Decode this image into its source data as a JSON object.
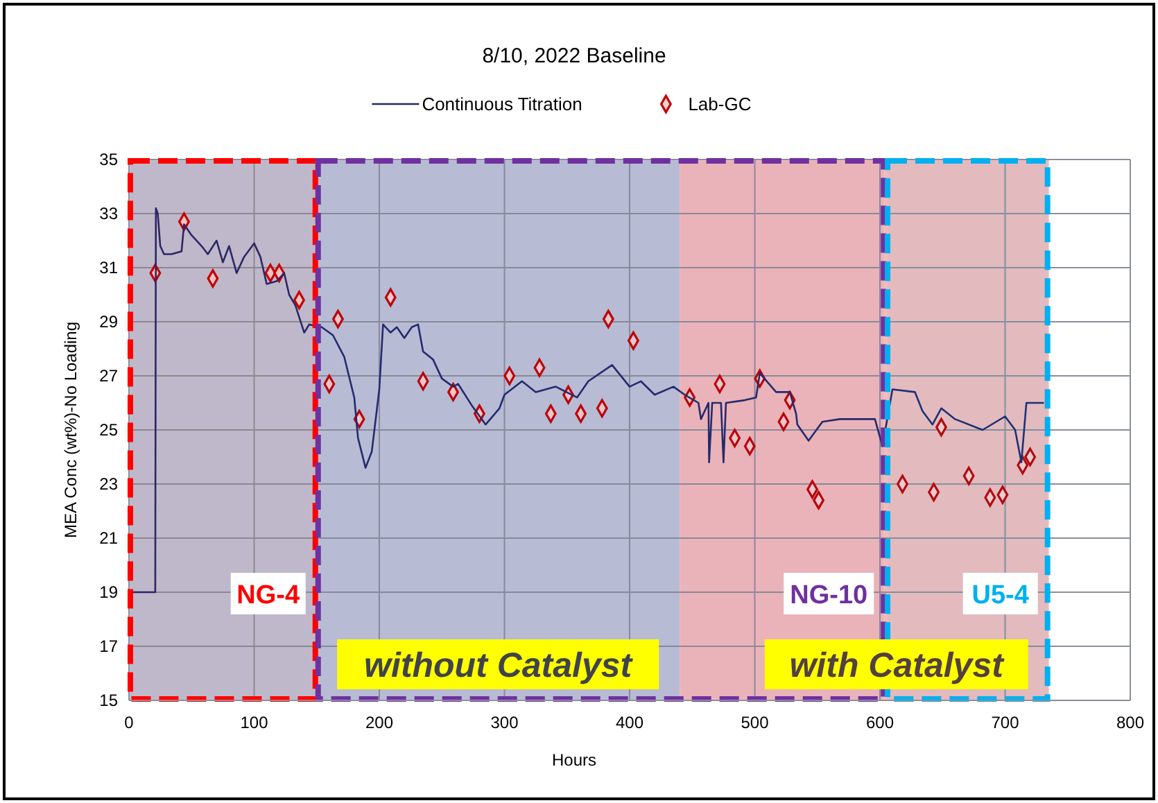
{
  "chart_data": {
    "type": "line",
    "title": "8/10, 2022 Baseline",
    "xlabel": "Hours",
    "ylabel": "MEA Conc (wt%)-No Loading",
    "xlim": [
      0,
      800
    ],
    "xticks": [
      0,
      100,
      200,
      300,
      400,
      500,
      600,
      700,
      800
    ],
    "ylim": [
      15,
      35
    ],
    "yticks": [
      15,
      17,
      19,
      21,
      23,
      25,
      27,
      29,
      31,
      33,
      35
    ],
    "grid": true,
    "legend": "top",
    "bands": [
      {
        "axis": "x",
        "from": 0,
        "to": 440,
        "label": "without Catalyst",
        "color": "#bcc4d8"
      },
      {
        "axis": "x",
        "from": 440,
        "to": 735,
        "label": "with Catalyst",
        "color": "#f2bcbc"
      },
      {
        "axis": "x",
        "from": 0,
        "to": 150,
        "label": "NG-4",
        "color": "#ff0000"
      },
      {
        "axis": "x",
        "from": 150,
        "to": 604,
        "label": "NG-10",
        "color": "#7030a0"
      },
      {
        "axis": "x",
        "from": 605,
        "to": 735,
        "label": "U5-4",
        "color": "#00b0f0"
      }
    ],
    "series": [
      {
        "name": "Continuous Titration",
        "color": "#1f2a6b",
        "marker": "none",
        "line_style": "solid",
        "x": [
          0,
          21,
          21.5,
          23,
          25,
          28,
          34,
          42,
          44,
          50,
          58,
          63,
          70,
          75,
          80,
          86,
          92,
          100,
          105,
          110,
          118,
          124,
          128,
          133,
          140,
          144,
          154,
          163,
          172,
          180,
          183,
          189,
          194,
          200,
          203,
          209,
          214,
          220,
          226,
          231,
          235,
          243,
          250,
          259,
          263,
          274,
          285,
          296,
          300,
          314,
          325,
          341,
          358,
          367,
          386,
          400,
          409,
          420,
          435,
          444,
          455,
          457,
          463,
          463.5,
          466,
          473,
          475,
          477,
          492,
          501,
          504,
          517,
          528,
          533,
          534,
          543,
          554,
          568,
          596,
          602,
          610,
          628,
          634,
          642,
          649,
          660,
          682,
          700,
          708,
          713,
          717,
          731
        ],
        "values": [
          19,
          19,
          33.2,
          33,
          31.8,
          31.5,
          31.5,
          31.6,
          32.6,
          32.2,
          31.8,
          31.5,
          32,
          31.2,
          31.8,
          30.8,
          31.4,
          31.9,
          31.4,
          30.4,
          30.5,
          30.8,
          30,
          29.6,
          28.6,
          28.9,
          28.8,
          28.5,
          27.7,
          26.2,
          24.7,
          23.6,
          24.2,
          26.5,
          28.9,
          28.6,
          28.8,
          28.4,
          28.8,
          28.9,
          27.9,
          27.6,
          26.9,
          26.6,
          26.7,
          25.9,
          25.2,
          25.8,
          26.3,
          26.8,
          26.4,
          26.6,
          26.2,
          26.8,
          27.4,
          26.6,
          26.8,
          26.3,
          26.6,
          26.3,
          26,
          25.4,
          26,
          23.8,
          26,
          26,
          23.8,
          26,
          26.1,
          26.2,
          27.1,
          26.4,
          26.4,
          25.6,
          25.2,
          24.6,
          25.3,
          25.4,
          25.4,
          24.4,
          26.5,
          26.4,
          25.7,
          25.2,
          25.8,
          25.4,
          25,
          25.5,
          25,
          23.8,
          26,
          26
        ]
      },
      {
        "name": "Lab-GC",
        "type": "scatter",
        "color": "#c00000",
        "marker": "diamond",
        "x": [
          21,
          44,
          67,
          113,
          120,
          136,
          160,
          167,
          184,
          209,
          235,
          259,
          280,
          304,
          328,
          337,
          351,
          361,
          378,
          383,
          403,
          448,
          472,
          484,
          496,
          504,
          523,
          528,
          546,
          551,
          618,
          643,
          649,
          671,
          688,
          698,
          714,
          720
        ],
        "values": [
          30.8,
          32.7,
          30.6,
          30.8,
          30.8,
          29.8,
          26.7,
          29.1,
          25.4,
          29.9,
          26.8,
          26.4,
          25.6,
          27,
          27.3,
          25.6,
          26.3,
          25.6,
          25.8,
          29.1,
          28.3,
          26.2,
          26.7,
          24.7,
          24.4,
          26.9,
          25.3,
          26.1,
          22.8,
          22.4,
          23,
          22.7,
          25.1,
          23.3,
          22.5,
          22.6,
          23.7,
          24
        ]
      }
    ]
  }
}
